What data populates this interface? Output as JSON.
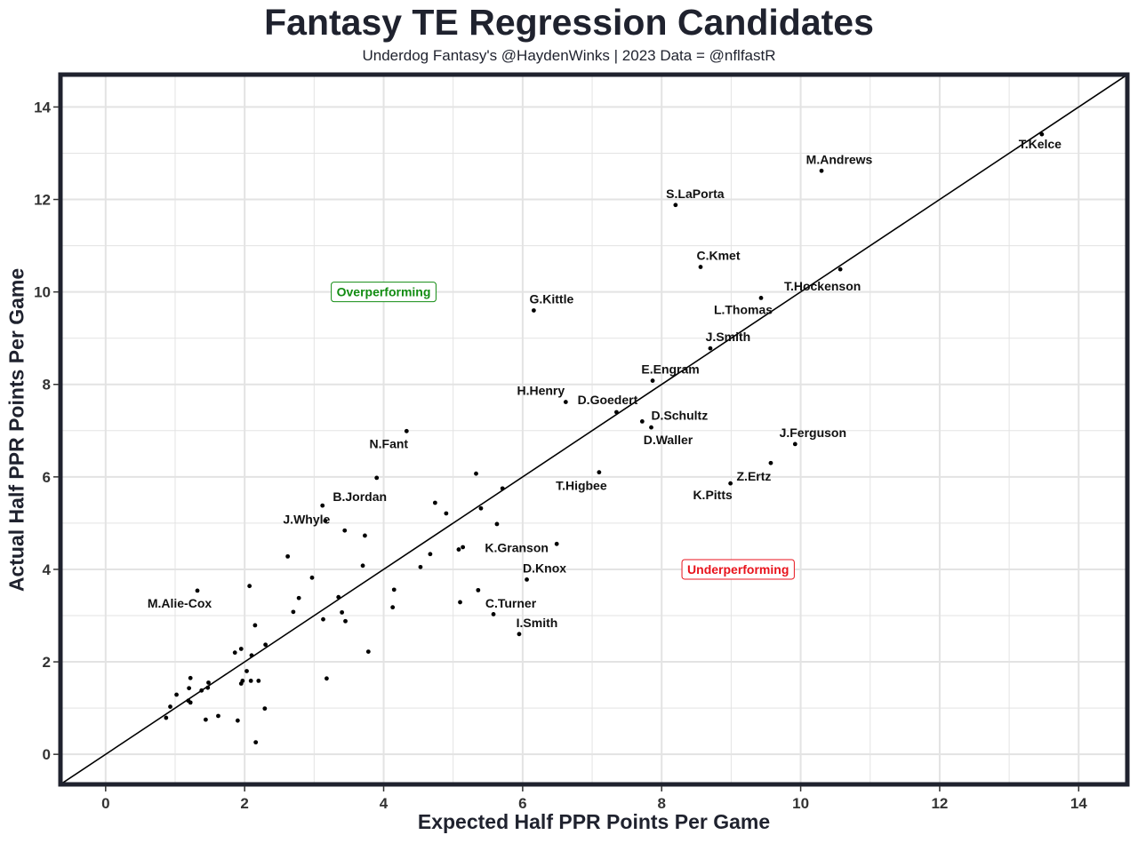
{
  "chart_data": {
    "type": "scatter",
    "title": "Fantasy TE Regression Candidates",
    "subtitle": "Underdog Fantasy's @HaydenWinks | 2023 Data = @nflfastR",
    "xlabel": "Expected Half PPR Points Per Game",
    "ylabel": "Actual Half PPR Points Per Game",
    "xlim": [
      -0.65,
      14.7
    ],
    "ylim": [
      -0.65,
      14.7
    ],
    "x_ticks": [
      0,
      2,
      4,
      6,
      8,
      10,
      12,
      14
    ],
    "y_ticks": [
      0,
      2,
      4,
      6,
      8,
      10,
      12,
      14
    ],
    "grid": true,
    "reference_line": "y = x",
    "colors": {
      "points": "#000000",
      "frame": "#1f222e",
      "grid": "#e3e3e3",
      "overperforming": "#128c12",
      "underperforming": "#e8131c"
    },
    "annotations": [
      {
        "text": "Overperforming",
        "x": 4.0,
        "y": 10.0,
        "color": "#128c12"
      },
      {
        "text": "Underperforming",
        "x": 9.1,
        "y": 4.0,
        "color": "#e8131c"
      }
    ],
    "points": [
      {
        "x": 13.47,
        "y": 13.41,
        "label": "T.Kelce",
        "anchor": "middle",
        "ldx": -2,
        "ldy": 16
      },
      {
        "x": 10.3,
        "y": 12.62,
        "label": "M.Andrews",
        "anchor": "middle",
        "ldx": 20,
        "ldy": -8
      },
      {
        "x": 8.2,
        "y": 11.88,
        "label": "S.LaPorta",
        "anchor": "middle",
        "ldx": 22,
        "ldy": -8
      },
      {
        "x": 8.56,
        "y": 10.54,
        "label": "C.Kmet",
        "anchor": "middle",
        "ldx": 20,
        "ldy": -8
      },
      {
        "x": 10.57,
        "y": 10.49,
        "label": "T.Hockenson",
        "anchor": "middle",
        "ldx": -20,
        "ldy": 24
      },
      {
        "x": 9.43,
        "y": 9.87,
        "label": "L.Thomas",
        "anchor": "middle",
        "ldx": -20,
        "ldy": 18
      },
      {
        "x": 6.16,
        "y": 9.6,
        "label": "G.Kittle",
        "anchor": "middle",
        "ldx": 20,
        "ldy": -8
      },
      {
        "x": 8.7,
        "y": 8.78,
        "label": "J.Smith",
        "anchor": "middle",
        "ldx": 20,
        "ldy": -8
      },
      {
        "x": 7.87,
        "y": 8.08,
        "label": "E.Engram",
        "anchor": "middle",
        "ldx": 20,
        "ldy": -8
      },
      {
        "x": 6.62,
        "y": 7.62,
        "label": "H.Henry",
        "anchor": "middle",
        "ldx": -28,
        "ldy": -8
      },
      {
        "x": 7.35,
        "y": 7.4,
        "label": "D.Goedert",
        "anchor": "middle",
        "ldx": -10,
        "ldy": -9
      },
      {
        "x": 7.72,
        "y": 7.2,
        "label": "D.Schultz",
        "anchor": "middle",
        "ldx": 42,
        "ldy": -2
      },
      {
        "x": 7.85,
        "y": 7.07,
        "label": "D.Waller",
        "anchor": "middle",
        "ldx": 19,
        "ldy": 19
      },
      {
        "x": 4.33,
        "y": 6.99,
        "label": "N.Fant",
        "anchor": "middle",
        "ldx": -20,
        "ldy": 19
      },
      {
        "x": 9.92,
        "y": 6.71,
        "label": "J.Ferguson",
        "anchor": "middle",
        "ldx": 20,
        "ldy": -8
      },
      {
        "x": 9.57,
        "y": 6.3,
        "label": "Z.Ertz",
        "anchor": "middle",
        "ldx": -19,
        "ldy": 20
      },
      {
        "x": 7.1,
        "y": 6.1,
        "label": "T.Higbee",
        "anchor": "middle",
        "ldx": -20,
        "ldy": 20
      },
      {
        "x": 8.99,
        "y": 5.86,
        "label": "K.Pitts",
        "anchor": "middle",
        "ldx": -20,
        "ldy": 18
      },
      {
        "x": 3.9,
        "y": 5.98
      },
      {
        "x": 3.12,
        "y": 5.38,
        "label": "B.Jordan",
        "anchor": "middle",
        "ldx": 42,
        "ldy": -5
      },
      {
        "x": 3.16,
        "y": 5.05,
        "label": "J.Whyle",
        "anchor": "middle",
        "ldx": -21,
        "ldy": 3
      },
      {
        "x": 6.49,
        "y": 4.55,
        "label": "K.Granson",
        "anchor": "middle",
        "ldx": -45,
        "ldy": 9
      },
      {
        "x": 6.06,
        "y": 3.78,
        "label": "D.Knox",
        "anchor": "middle",
        "ldx": 20,
        "ldy": -8
      },
      {
        "x": 5.1,
        "y": 3.29,
        "label": "C.Turner",
        "anchor": "middle",
        "ldx": 57,
        "ldy": 6
      },
      {
        "x": 5.95,
        "y": 2.6,
        "label": "I.Smith",
        "anchor": "middle",
        "ldx": 20,
        "ldy": -8
      },
      {
        "x": 1.32,
        "y": 3.54,
        "label": "M.Alie-Cox",
        "anchor": "middle",
        "ldx": -20,
        "ldy": 19
      },
      {
        "x": 5.33,
        "y": 6.07
      },
      {
        "x": 5.71,
        "y": 5.75
      },
      {
        "x": 5.4,
        "y": 5.32
      },
      {
        "x": 4.74,
        "y": 5.44
      },
      {
        "x": 4.9,
        "y": 5.21
      },
      {
        "x": 5.63,
        "y": 4.98
      },
      {
        "x": 5.14,
        "y": 4.48
      },
      {
        "x": 5.08,
        "y": 4.43
      },
      {
        "x": 4.67,
        "y": 4.33
      },
      {
        "x": 4.53,
        "y": 4.05
      },
      {
        "x": 4.15,
        "y": 3.56
      },
      {
        "x": 4.13,
        "y": 3.18
      },
      {
        "x": 5.36,
        "y": 3.55
      },
      {
        "x": 5.58,
        "y": 3.03
      },
      {
        "x": 3.44,
        "y": 4.84
      },
      {
        "x": 3.73,
        "y": 4.73
      },
      {
        "x": 3.7,
        "y": 4.08
      },
      {
        "x": 2.62,
        "y": 4.28
      },
      {
        "x": 2.97,
        "y": 3.82
      },
      {
        "x": 2.07,
        "y": 3.64
      },
      {
        "x": 3.35,
        "y": 3.4
      },
      {
        "x": 2.78,
        "y": 3.38
      },
      {
        "x": 3.4,
        "y": 3.07
      },
      {
        "x": 2.7,
        "y": 3.08
      },
      {
        "x": 3.13,
        "y": 2.92
      },
      {
        "x": 3.45,
        "y": 2.88
      },
      {
        "x": 2.15,
        "y": 2.79
      },
      {
        "x": 2.3,
        "y": 2.37
      },
      {
        "x": 3.78,
        "y": 2.22
      },
      {
        "x": 1.95,
        "y": 2.28
      },
      {
        "x": 1.86,
        "y": 2.2
      },
      {
        "x": 2.1,
        "y": 2.14
      },
      {
        "x": 3.18,
        "y": 1.64
      },
      {
        "x": 2.03,
        "y": 1.8
      },
      {
        "x": 1.22,
        "y": 1.65
      },
      {
        "x": 2.09,
        "y": 1.59
      },
      {
        "x": 2.2,
        "y": 1.59
      },
      {
        "x": 1.97,
        "y": 1.59
      },
      {
        "x": 1.95,
        "y": 1.53
      },
      {
        "x": 1.48,
        "y": 1.55
      },
      {
        "x": 1.2,
        "y": 1.43
      },
      {
        "x": 1.47,
        "y": 1.44
      },
      {
        "x": 1.38,
        "y": 1.38
      },
      {
        "x": 1.02,
        "y": 1.29
      },
      {
        "x": 1.19,
        "y": 1.16
      },
      {
        "x": 1.22,
        "y": 1.12
      },
      {
        "x": 0.93,
        "y": 1.03
      },
      {
        "x": 2.29,
        "y": 0.99
      },
      {
        "x": 1.62,
        "y": 0.83
      },
      {
        "x": 0.87,
        "y": 0.79
      },
      {
        "x": 1.44,
        "y": 0.75
      },
      {
        "x": 1.9,
        "y": 0.73
      },
      {
        "x": 2.16,
        "y": 0.26
      }
    ]
  }
}
